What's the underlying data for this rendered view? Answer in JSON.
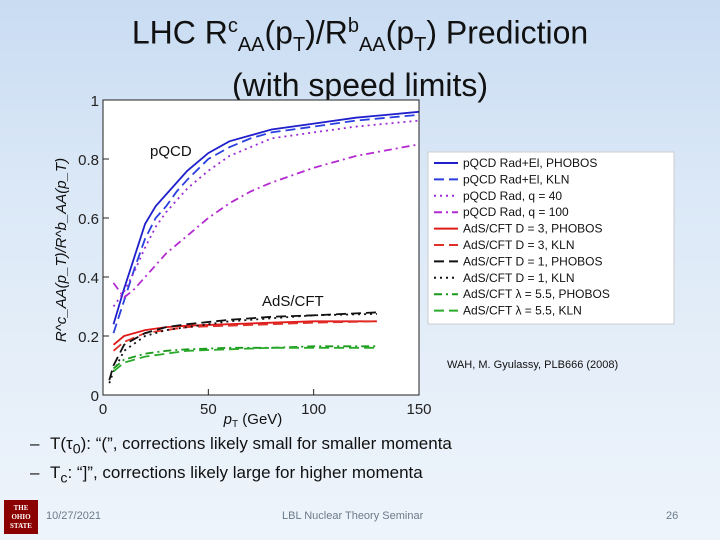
{
  "slide": {
    "title_line1_a": "LHC R",
    "title_sup1": "c",
    "title_sub1": "AA",
    "title_mid1": "(p",
    "title_sub2": "T",
    "title_mid2": ")/R",
    "title_sup2": "b",
    "title_sub3": "AA",
    "title_mid3": "(p",
    "title_sub4": "T",
    "title_end": ") Prediction",
    "title_line2": "(with speed limits)",
    "bullet1_a": "T(τ",
    "bullet1_sub": "0",
    "bullet1_b": "): “(”, corrections likely small for smaller momenta",
    "bullet2_a": "T",
    "bullet2_sub": "c",
    "bullet2_b": ": “]”, corrections likely large for higher momenta",
    "dash": "–",
    "date": "10/27/2021",
    "seminar": "LBL Nuclear Theory Seminar",
    "page": "26",
    "logo_line1": "THE",
    "logo_line2": "OHIO",
    "logo_line3": "STATE"
  },
  "chart_data": {
    "type": "line",
    "xlabel_pre": "p",
    "xlabel_sub": "T",
    "xlabel_post": " (GeV)",
    "ylabel": "R^c_AA(p_T)/R^b_AA(p_T)",
    "xlim": [
      0,
      150
    ],
    "ylim": [
      0,
      1
    ],
    "xticks": [
      "0",
      "50",
      "100",
      "150"
    ],
    "yticks": [
      "0",
      "0.2",
      "0.4",
      "0.6",
      "0.8",
      "1"
    ],
    "annotations": {
      "pqcd": "pQCD",
      "adscft": "AdS/CFT",
      "citation": "WAH, M. Gyulassy, PLB666 (2008)"
    },
    "legend_position": "right",
    "series": [
      {
        "name": "pQCD Rad+El, PHOBOS",
        "color": "#1f1fcc",
        "dash": "",
        "x": [
          5,
          10,
          15,
          20,
          25,
          30,
          35,
          40,
          50,
          60,
          70,
          80,
          100,
          120,
          150
        ],
        "y": [
          0.24,
          0.36,
          0.47,
          0.58,
          0.64,
          0.68,
          0.72,
          0.76,
          0.82,
          0.86,
          0.88,
          0.9,
          0.92,
          0.94,
          0.96
        ]
      },
      {
        "name": "pQCD Rad+El, KLN",
        "color": "#2a3fe0",
        "dash": "10,5",
        "x": [
          5,
          10,
          15,
          20,
          25,
          30,
          35,
          40,
          50,
          60,
          70,
          80,
          100,
          120,
          150
        ],
        "y": [
          0.21,
          0.32,
          0.43,
          0.53,
          0.6,
          0.64,
          0.69,
          0.73,
          0.8,
          0.84,
          0.87,
          0.89,
          0.91,
          0.93,
          0.95
        ]
      },
      {
        "name": "pQCD Rad, q = 40",
        "color": "#9a2bd6",
        "dash": "2,4",
        "x": [
          5,
          10,
          15,
          20,
          25,
          30,
          35,
          40,
          50,
          60,
          70,
          80,
          100,
          120,
          150
        ],
        "y": [
          0.3,
          0.35,
          0.42,
          0.5,
          0.57,
          0.62,
          0.66,
          0.7,
          0.76,
          0.81,
          0.84,
          0.87,
          0.89,
          0.91,
          0.93
        ]
      },
      {
        "name": "pQCD Rad, q = 100",
        "color": "#b32ad0",
        "dash": "8,4,2,4",
        "x": [
          5,
          10,
          15,
          20,
          25,
          30,
          35,
          40,
          50,
          60,
          70,
          80,
          100,
          120,
          150
        ],
        "y": [
          0.38,
          0.33,
          0.36,
          0.4,
          0.44,
          0.48,
          0.51,
          0.54,
          0.6,
          0.65,
          0.69,
          0.72,
          0.77,
          0.81,
          0.85
        ]
      },
      {
        "name": "AdS/CFT D = 3, PHOBOS",
        "color": "#e01a1a",
        "dash": "",
        "x": [
          5,
          10,
          20,
          30,
          40,
          60,
          80,
          100,
          130
        ],
        "y": [
          0.17,
          0.2,
          0.22,
          0.23,
          0.235,
          0.24,
          0.245,
          0.25,
          0.25
        ]
      },
      {
        "name": "AdS/CFT D = 3, KLN",
        "color": "#e0302a",
        "dash": "10,5",
        "x": [
          5,
          10,
          20,
          30,
          40,
          60,
          80,
          100,
          130
        ],
        "y": [
          0.15,
          0.18,
          0.21,
          0.22,
          0.23,
          0.235,
          0.24,
          0.245,
          0.25
        ]
      },
      {
        "name": "AdS/CFT D = 1, PHOBOS",
        "color": "#111111",
        "dash": "10,5",
        "x": [
          3,
          5,
          10,
          20,
          30,
          40,
          60,
          80,
          100,
          130
        ],
        "y": [
          0.05,
          0.1,
          0.17,
          0.21,
          0.23,
          0.24,
          0.255,
          0.265,
          0.27,
          0.28
        ]
      },
      {
        "name": "AdS/CFT D = 1, KLN",
        "color": "#111111",
        "dash": "2,4",
        "x": [
          3,
          5,
          10,
          20,
          30,
          40,
          60,
          80,
          100,
          130
        ],
        "y": [
          0.04,
          0.08,
          0.15,
          0.2,
          0.22,
          0.23,
          0.25,
          0.26,
          0.27,
          0.275
        ]
      },
      {
        "name": "AdS/CFT λ = 5.5, PHOBOS",
        "color": "#1a9a1a",
        "dash": "8,4,2,4",
        "x": [
          5,
          10,
          20,
          30,
          40,
          60,
          80,
          100,
          130
        ],
        "y": [
          0.09,
          0.12,
          0.14,
          0.15,
          0.155,
          0.16,
          0.16,
          0.165,
          0.165
        ]
      },
      {
        "name": "AdS/CFT λ = 5.5, KLN",
        "color": "#2aaa2a",
        "dash": "10,5",
        "x": [
          5,
          10,
          20,
          30,
          40,
          60,
          80,
          100,
          130
        ],
        "y": [
          0.08,
          0.11,
          0.13,
          0.14,
          0.15,
          0.155,
          0.16,
          0.16,
          0.16
        ]
      }
    ]
  }
}
